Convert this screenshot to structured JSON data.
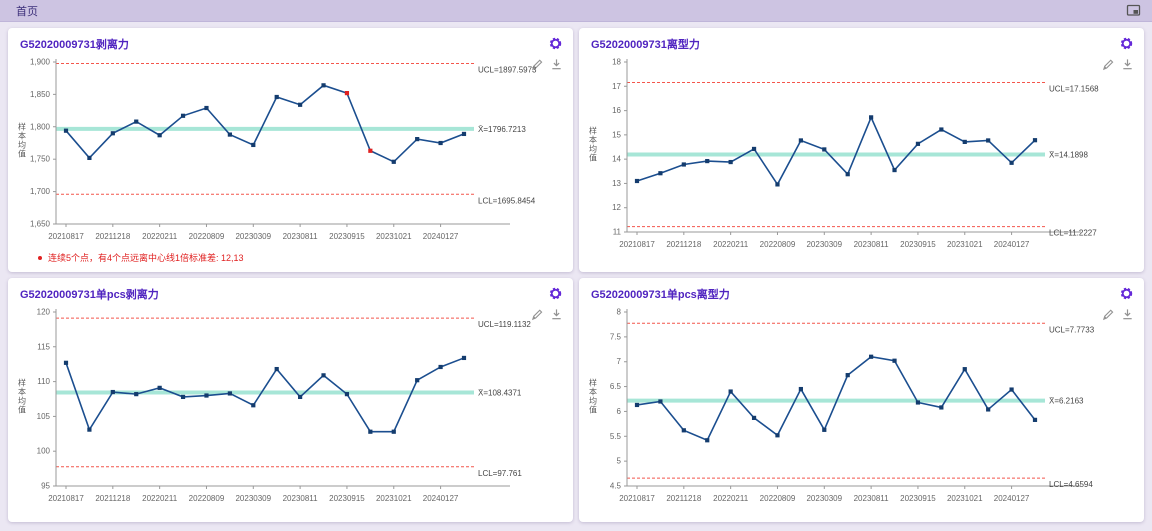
{
  "topbar": {
    "tab_label": "首页"
  },
  "icons": {
    "window_restore": "restore-window-icon",
    "settings": "gear-icon",
    "edit": "pencil-icon",
    "download": "download-icon"
  },
  "colors": {
    "page_bg": "#ebe7f3",
    "topbar_bg": "#cdc4e2",
    "title_purple": "#5024c0",
    "gear_purple": "#6428d8",
    "series_line": "#1b4e8f",
    "marker": "#143c6e",
    "alarm_red": "#e02121",
    "limit_dashed": "#f4564c",
    "center_line": "#a7e6d7",
    "axis_gray": "#999999"
  },
  "x_tick_labels": [
    "20210817",
    "20211218",
    "20220211",
    "20220809",
    "20230309",
    "20230811",
    "20230915",
    "20231021",
    "20240127"
  ],
  "panels": [
    {
      "title": "G52020009731剥离力",
      "y_axis_title": "样本均值",
      "violation": "连续5个点，有4个点远离中心线1倍标准差: 12,13",
      "chart_data": {
        "type": "line",
        "n_points": 18,
        "x_tick_labels": [
          "20210817",
          "20211218",
          "20220211",
          "20220809",
          "20230309",
          "20230811",
          "20230915",
          "20231021",
          "20240127"
        ],
        "values": [
          1794,
          1752,
          1790,
          1808,
          1787,
          1817,
          1829,
          1788,
          1772,
          1846,
          1834,
          1864,
          1852,
          1763,
          1746,
          1781,
          1775,
          1789
        ],
        "out_of_rule_indices": [
          12,
          13
        ],
        "ucl": 1897.5973,
        "center": 1796.7213,
        "lcl": 1695.8454,
        "ucl_label": "UCL=1897.5973",
        "center_label": "X̄=1796.7213",
        "lcl_label": "LCL=1695.8454",
        "ylim": [
          1650,
          1900
        ],
        "ytick_values": [
          1900,
          1850,
          1800,
          1750,
          1700,
          1650
        ],
        "ytick_labels": [
          "1,900",
          "1,850",
          "1,800",
          "1,750",
          "1,700",
          "1,650"
        ]
      }
    },
    {
      "title": "G52020009731离型力",
      "y_axis_title": "样本均值",
      "violation": "",
      "chart_data": {
        "type": "line",
        "n_points": 18,
        "x_tick_labels": [
          "20210817",
          "20211218",
          "20220211",
          "20220809",
          "20230309",
          "20230811",
          "20230915",
          "20231021",
          "20240127"
        ],
        "values": [
          13.1,
          13.42,
          13.78,
          13.92,
          13.88,
          14.42,
          12.96,
          14.77,
          14.4,
          13.38,
          15.72,
          13.55,
          14.63,
          15.22,
          14.71,
          14.77,
          13.85,
          14.78
        ],
        "out_of_rule_indices": [],
        "ucl": 17.1568,
        "center": 14.1898,
        "lcl": 11.2227,
        "ucl_label": "UCL=17.1568",
        "center_label": "X̄=14.1898",
        "lcl_label": "LCL=11.2227",
        "ylim": [
          11,
          18
        ],
        "ytick_values": [
          18,
          17,
          16,
          15,
          14,
          13,
          12,
          11
        ],
        "ytick_labels": [
          "18",
          "17",
          "16",
          "15",
          "14",
          "13",
          "12",
          "11"
        ]
      }
    },
    {
      "title": "G52020009731单pcs剥离力",
      "y_axis_title": "样本均值",
      "violation": "",
      "chart_data": {
        "type": "line",
        "n_points": 18,
        "x_tick_labels": [
          "20210817",
          "20211218",
          "20220211",
          "20220809",
          "20230309",
          "20230811",
          "20230915",
          "20231021",
          "20240127"
        ],
        "values": [
          112.7,
          103.1,
          108.5,
          108.2,
          109.1,
          107.8,
          108.0,
          108.3,
          106.6,
          111.8,
          107.8,
          110.9,
          108.2,
          102.8,
          102.8,
          110.2,
          112.1,
          113.4
        ],
        "out_of_rule_indices": [],
        "ucl": 119.1132,
        "center": 108.4371,
        "lcl": 97.761,
        "ucl_label": "UCL=119.1132",
        "center_label": "X̄=108.4371",
        "lcl_label": "LCL=97.761",
        "ylim": [
          95,
          120
        ],
        "ytick_values": [
          120,
          115,
          110,
          105,
          100,
          95
        ],
        "ytick_labels": [
          "120",
          "115",
          "110",
          "105",
          "100",
          "95"
        ]
      }
    },
    {
      "title": "G52020009731单pcs离型力",
      "y_axis_title": "样本均值",
      "violation": "",
      "chart_data": {
        "type": "line",
        "n_points": 18,
        "x_tick_labels": [
          "20210817",
          "20211218",
          "20220211",
          "20220809",
          "20230309",
          "20230811",
          "20230915",
          "20231021",
          "20240127"
        ],
        "values": [
          6.13,
          6.2,
          5.62,
          5.42,
          6.4,
          5.87,
          5.52,
          6.45,
          5.63,
          6.73,
          7.1,
          7.02,
          6.18,
          6.08,
          6.85,
          6.04,
          6.44,
          5.83
        ],
        "out_of_rule_indices": [],
        "ucl": 7.7733,
        "center": 6.2163,
        "lcl": 4.6594,
        "ucl_label": "UCL=7.7733",
        "center_label": "X̄=6.2163",
        "lcl_label": "LCL=4.6594",
        "ylim": [
          4.5,
          8
        ],
        "ytick_values": [
          8,
          7.5,
          7,
          6.5,
          6,
          5.5,
          5,
          4.5
        ],
        "ytick_labels": [
          "8",
          "7.5",
          "7",
          "6.5",
          "6",
          "5.5",
          "5",
          "4.5"
        ]
      }
    }
  ]
}
